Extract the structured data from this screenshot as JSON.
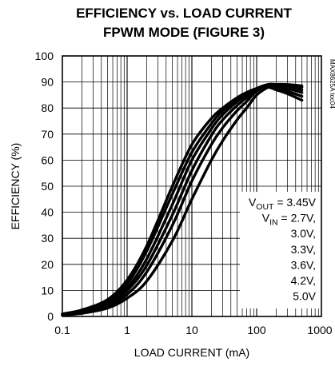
{
  "chart_data": {
    "type": "line",
    "title": "EFFICIENCY vs. LOAD CURRENT",
    "subtitle": "FPWM MODE (FIGURE 3)",
    "xlabel": "LOAD CURRENT (mA)",
    "ylabel": "EFFICIENCY (%)",
    "xscale": "log",
    "xlim": [
      0.1,
      1000
    ],
    "ylim": [
      0,
      100
    ],
    "grid": true,
    "x_ticks": [
      "0.1",
      "1",
      "10",
      "100",
      "1000"
    ],
    "y_ticks": [
      "0",
      "10",
      "20",
      "30",
      "40",
      "50",
      "60",
      "70",
      "80",
      "90",
      "100"
    ],
    "watermark": "MAX8625A toc04",
    "legend_lines": [
      {
        "main": "V",
        "sub": "OUT",
        "rest": " = 3.45V"
      },
      {
        "main": "V",
        "sub": "IN",
        "rest": " = 2.7V,"
      },
      {
        "main": "",
        "sub": "",
        "rest": "3.0V,"
      },
      {
        "main": "",
        "sub": "",
        "rest": "3.3V,"
      },
      {
        "main": "",
        "sub": "",
        "rest": "3.6V,"
      },
      {
        "main": "",
        "sub": "",
        "rest": "4.2V,"
      },
      {
        "main": "",
        "sub": "",
        "rest": "5.0V"
      }
    ],
    "x": [
      0.1,
      0.2,
      0.5,
      1,
      2,
      5,
      10,
      20,
      30,
      50,
      70,
      100,
      150,
      200,
      300,
      500
    ],
    "series": [
      {
        "values": [
          1.0,
          2.5,
          6.5,
          14,
          27,
          50,
          66,
          76,
          80,
          84,
          86,
          87.5,
          88,
          87,
          85.5,
          83
        ]
      },
      {
        "values": [
          0.9,
          2.2,
          6.0,
          12.5,
          25,
          47,
          63,
          74,
          79,
          83,
          85.5,
          87.5,
          88.5,
          88,
          86.5,
          84.5
        ]
      },
      {
        "values": [
          0.8,
          2.0,
          5.2,
          11,
          22,
          43,
          60,
          72,
          77.5,
          82.5,
          85,
          87.5,
          89,
          88.5,
          87.5,
          86
        ]
      },
      {
        "values": [
          0.7,
          1.8,
          4.6,
          10,
          19.5,
          39,
          56,
          69.5,
          75.5,
          81,
          84,
          87,
          89,
          89,
          88,
          87
        ]
      },
      {
        "values": [
          0.6,
          1.5,
          4.0,
          8.5,
          17,
          35,
          52,
          66,
          72.5,
          79,
          82.5,
          86.5,
          88.5,
          89,
          88.5,
          88
        ]
      },
      {
        "values": [
          0.5,
          1.2,
          3.2,
          7,
          13.5,
          29,
          45,
          60,
          67.5,
          75.5,
          80,
          85,
          88,
          89,
          89,
          88.5
        ]
      }
    ]
  }
}
